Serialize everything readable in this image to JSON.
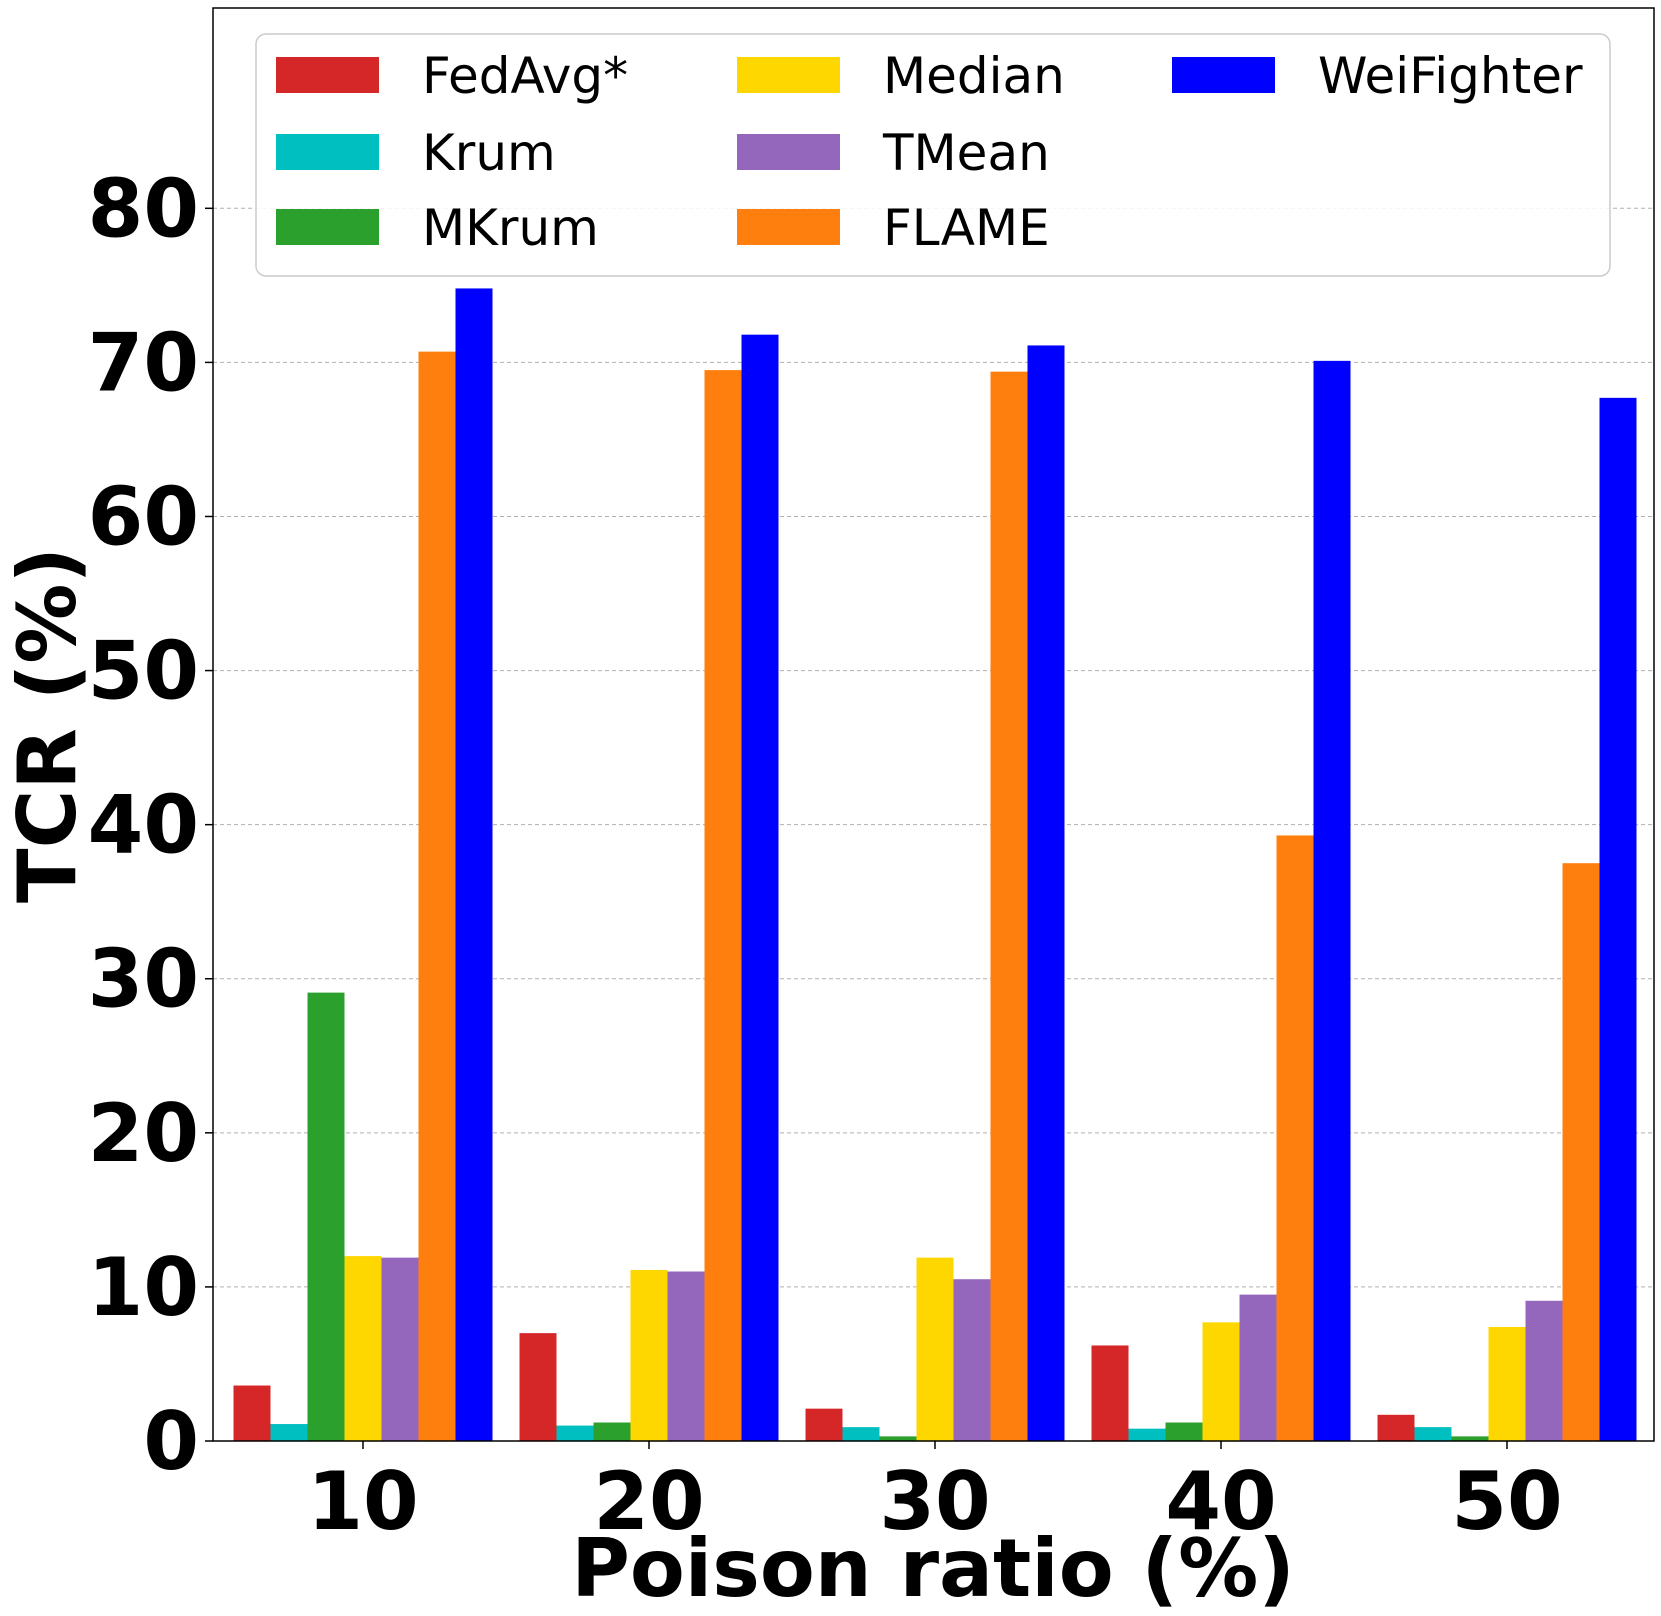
{
  "chart_data": {
    "type": "bar",
    "title": "",
    "xlabel": "Poison ratio (%)",
    "ylabel": "TCR (%)",
    "categories": [
      "10",
      "20",
      "30",
      "40",
      "50"
    ],
    "ylim": [
      0,
      93
    ],
    "yticks": [
      0,
      10,
      20,
      30,
      40,
      50,
      60,
      70,
      80
    ],
    "grid": "y-dashed",
    "legend_position": "top",
    "series": [
      {
        "name": "FedAvg*",
        "color": "#d62728",
        "values": [
          3.6,
          7.0,
          2.1,
          6.2,
          1.7
        ]
      },
      {
        "name": "Krum",
        "color": "#00bfc0",
        "values": [
          1.1,
          1.0,
          0.9,
          0.8,
          0.9
        ]
      },
      {
        "name": "MKrum",
        "color": "#2ca02c",
        "values": [
          29.1,
          1.2,
          0.3,
          1.2,
          0.3
        ]
      },
      {
        "name": "Median",
        "color": "#ffd700",
        "values": [
          12.0,
          11.1,
          11.9,
          7.7,
          7.4
        ]
      },
      {
        "name": "TMean",
        "color": "#9467bd",
        "values": [
          11.9,
          11.0,
          10.5,
          9.5,
          9.1
        ]
      },
      {
        "name": "FLAME",
        "color": "#ff7f0e",
        "values": [
          70.7,
          69.5,
          69.4,
          39.3,
          37.5
        ]
      },
      {
        "name": "WeiFighter",
        "color": "#0000ff",
        "values": [
          74.8,
          71.8,
          71.1,
          70.1,
          67.7
        ]
      }
    ]
  }
}
